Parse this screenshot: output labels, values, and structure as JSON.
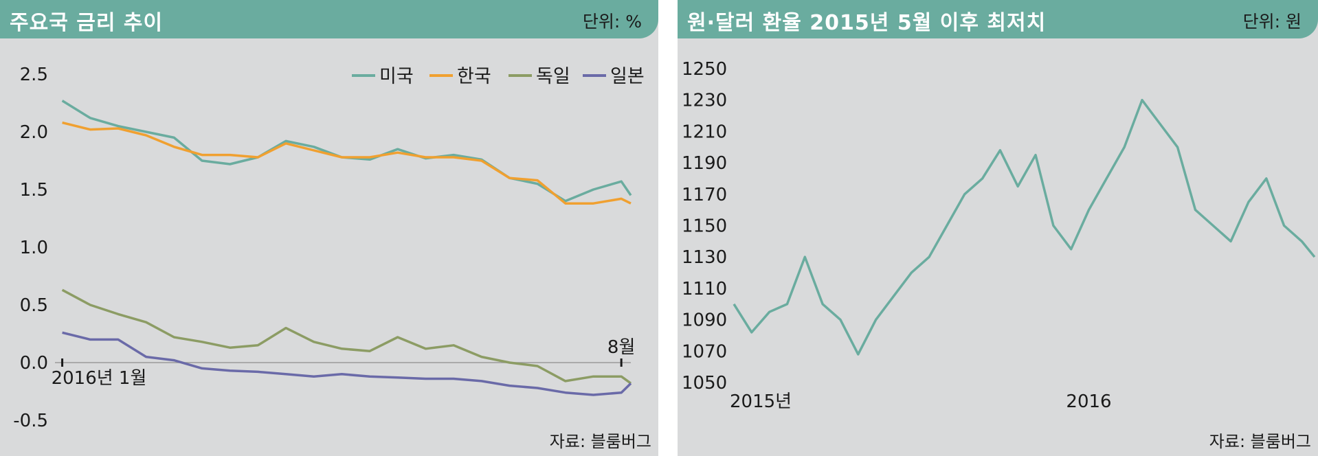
{
  "left": {
    "title": "주요국 금리 추이",
    "unit": "단위: %",
    "source": "자료: 블룸버그"
  },
  "right": {
    "title": "원·달러 환율 2015년 5월 이후 최저치",
    "unit": "단위: 원",
    "source": "자료: 블룸버그"
  },
  "chart_data": [
    {
      "type": "line",
      "title": "주요국 금리 추이",
      "ylabel": "단위: %",
      "ylim": [
        -0.5,
        2.5
      ],
      "y_ticks": [
        "2.5",
        "2.0",
        "1.5",
        "1.0",
        "0.5",
        "0.0",
        "-0.5"
      ],
      "y_tick_values": [
        2.5,
        2.0,
        1.5,
        1.0,
        0.5,
        0.0,
        -0.5
      ],
      "x_ticks": [
        "2016년 1월",
        "8월"
      ],
      "x_tick_positions": [
        0.0,
        1.0
      ],
      "xlim": [
        -0.013,
        1.017
      ],
      "legend_position": "top-right",
      "grid": false,
      "x": [
        0.0,
        0.05,
        0.1,
        0.15,
        0.2,
        0.25,
        0.3,
        0.35,
        0.4,
        0.45,
        0.5,
        0.55,
        0.6,
        0.65,
        0.7,
        0.75,
        0.8,
        0.85,
        0.9,
        0.95,
        1.0,
        1.017
      ],
      "series": [
        {
          "name": "미국",
          "color": "#6aac9f",
          "values": [
            2.27,
            2.12,
            2.05,
            2.0,
            1.95,
            1.75,
            1.72,
            1.78,
            1.92,
            1.87,
            1.78,
            1.76,
            1.85,
            1.77,
            1.8,
            1.76,
            1.6,
            1.55,
            1.4,
            1.5,
            1.57,
            1.45
          ]
        },
        {
          "name": "한국",
          "color": "#f0a030",
          "values": [
            2.08,
            2.02,
            2.03,
            1.97,
            1.87,
            1.8,
            1.8,
            1.78,
            1.9,
            1.84,
            1.78,
            1.78,
            1.82,
            1.78,
            1.78,
            1.75,
            1.6,
            1.58,
            1.38,
            1.38,
            1.42,
            1.38
          ]
        },
        {
          "name": "독일",
          "color": "#8c9c64",
          "values": [
            0.63,
            0.5,
            0.42,
            0.35,
            0.22,
            0.18,
            0.13,
            0.15,
            0.3,
            0.18,
            0.12,
            0.1,
            0.22,
            0.12,
            0.15,
            0.05,
            0.0,
            -0.03,
            -0.16,
            -0.12,
            -0.12,
            -0.18
          ]
        },
        {
          "name": "일본",
          "color": "#6a6aa8",
          "values": [
            0.26,
            0.2,
            0.2,
            0.05,
            0.02,
            -0.05,
            -0.07,
            -0.08,
            -0.1,
            -0.12,
            -0.1,
            -0.12,
            -0.13,
            -0.14,
            -0.14,
            -0.16,
            -0.2,
            -0.22,
            -0.26,
            -0.28,
            -0.26,
            -0.18
          ]
        }
      ]
    },
    {
      "type": "line",
      "title": "원·달러 환율 2015년 5월 이후 최저치",
      "ylabel": "단위: 원",
      "ylim": [
        1050,
        1250
      ],
      "y_ticks": [
        "1250",
        "1230",
        "1210",
        "1190",
        "1170",
        "1150",
        "1130",
        "1110",
        "1090",
        "1070",
        "1050"
      ],
      "y_tick_values": [
        1250,
        1230,
        1210,
        1190,
        1170,
        1150,
        1130,
        1110,
        1090,
        1070,
        1050
      ],
      "x_ticks": [
        "2015년",
        "2016"
      ],
      "x_tick_positions": [
        0.0,
        1.0
      ],
      "xlim": [
        0.0,
        1.636
      ],
      "grid": false,
      "x": [
        0.0,
        0.05,
        0.1,
        0.15,
        0.2,
        0.25,
        0.3,
        0.35,
        0.4,
        0.45,
        0.5,
        0.55,
        0.6,
        0.65,
        0.7,
        0.75,
        0.8,
        0.85,
        0.9,
        0.95,
        1.0,
        1.05,
        1.1,
        1.15,
        1.2,
        1.25,
        1.3,
        1.35,
        1.4,
        1.45,
        1.5,
        1.55,
        1.6,
        1.636
      ],
      "series": [
        {
          "name": "",
          "color": "#6aac9f",
          "values": [
            1100,
            1082,
            1095,
            1100,
            1130,
            1100,
            1090,
            1068,
            1090,
            1105,
            1120,
            1130,
            1150,
            1170,
            1180,
            1198,
            1175,
            1195,
            1150,
            1135,
            1160,
            1180,
            1200,
            1230,
            1215,
            1200,
            1160,
            1150,
            1140,
            1165,
            1180,
            1150,
            1140,
            1130
          ]
        }
      ]
    }
  ]
}
